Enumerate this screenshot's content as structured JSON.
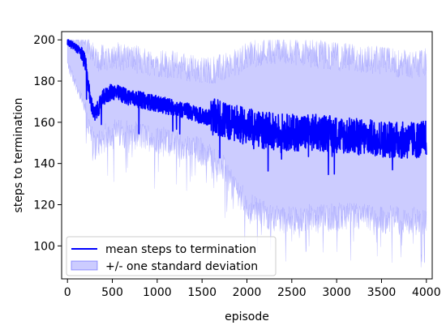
{
  "chart_data": {
    "type": "line",
    "xlabel": "episode",
    "ylabel": "steps to termination",
    "xlim": [
      -65,
      4065
    ],
    "ylim": [
      84,
      204
    ],
    "xticks": [
      0,
      500,
      1000,
      1500,
      2000,
      2500,
      3000,
      3500,
      4000
    ],
    "yticks": [
      100,
      120,
      140,
      160,
      180,
      200
    ],
    "grid": false,
    "legend_position": "lower-left",
    "series": [
      {
        "name": "mean steps to termination",
        "kind": "line",
        "color": "#0000ff",
        "x": [
          0,
          100,
          150,
          200,
          250,
          300,
          400,
          500,
          700,
          1000,
          1300,
          1500,
          1700,
          1800,
          2000,
          2200,
          2500,
          2800,
          3000,
          3200,
          3500,
          3800,
          4000
        ],
        "y": [
          199,
          196,
          194,
          189,
          172,
          163,
          172,
          175,
          172,
          169,
          166,
          163,
          162,
          160,
          158,
          156,
          155,
          155,
          154,
          153,
          152,
          151,
          152
        ]
      },
      {
        "name": "+/- one standard deviation",
        "kind": "band",
        "color": "#0000ff",
        "x": [
          0,
          100,
          150,
          200,
          250,
          300,
          400,
          500,
          700,
          1000,
          1300,
          1500,
          1700,
          1800,
          2000,
          2200,
          2500,
          2800,
          3000,
          3200,
          3500,
          3800,
          4000
        ],
        "lower": [
          188,
          178,
          172,
          165,
          155,
          148,
          152,
          155,
          154,
          152,
          148,
          146,
          140,
          133,
          120,
          115,
          112,
          114,
          114,
          114,
          113,
          112,
          112
        ],
        "upper": [
          200,
          200,
          200,
          200,
          198,
          190,
          191,
          193,
          191,
          189,
          187,
          185,
          186,
          187,
          192,
          195,
          195,
          193,
          192,
          191,
          190,
          188,
          189
        ]
      }
    ]
  },
  "colors": {
    "line": "#0000ff",
    "band_fill": "#0000ff",
    "band_opacity": 0.2,
    "axis": "#000000"
  }
}
